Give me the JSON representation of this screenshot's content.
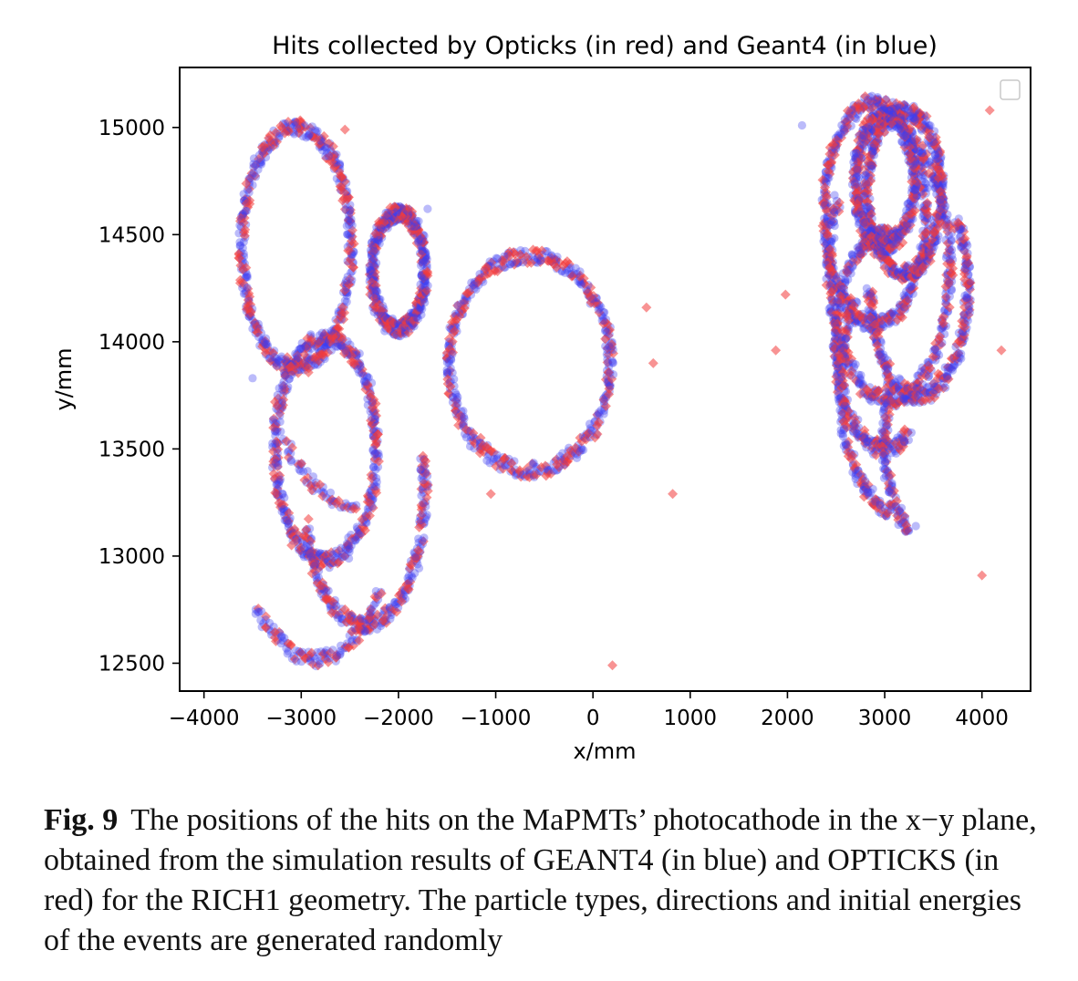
{
  "chart_data": {
    "type": "scatter",
    "title": "Hits collected by Opticks (in red) and Geant4 (in blue)",
    "xlabel": "x/mm",
    "ylabel": "y/mm",
    "xlim": [
      -4250,
      4500
    ],
    "ylim": [
      12370,
      15280
    ],
    "xticks": [
      -4000,
      -3000,
      -2000,
      -1000,
      0,
      1000,
      2000,
      3000,
      4000
    ],
    "xtick_labels": [
      "−4000",
      "−3000",
      "−2000",
      "−1000",
      "0",
      "1000",
      "2000",
      "3000",
      "4000"
    ],
    "yticks": [
      12500,
      13000,
      13500,
      14000,
      14500,
      15000
    ],
    "ytick_labels": [
      "12500",
      "13000",
      "13500",
      "14000",
      "14500",
      "15000"
    ],
    "grid": false,
    "legend": {
      "placement": "top-right",
      "entries": []
    },
    "series_style": {
      "geant4": {
        "color": "#3b3bf2",
        "marker": "circle"
      },
      "opticks": {
        "color": "#f23b3b",
        "marker": "diamond"
      }
    },
    "rings": [
      {
        "cx": -3050,
        "cy": 14440,
        "r": 560,
        "from_deg": 110,
        "to_deg": 465
      },
      {
        "cx": -2000,
        "cy": 14330,
        "r": 270,
        "from_deg": 0,
        "to_deg": 360
      },
      {
        "cx": -650,
        "cy": 13900,
        "r_x": 830,
        "r_y": 500,
        "from_deg": 0,
        "to_deg": 360
      },
      {
        "cx": -2750,
        "cy": 13500,
        "r": 520,
        "from_deg": 0,
        "to_deg": 360
      },
      {
        "cx": -2350,
        "cy": 13300,
        "r": 620,
        "from_deg": 195,
        "to_deg": 375
      },
      {
        "cx": -2850,
        "cy": 13380,
        "r": 860,
        "from_deg": 225,
        "to_deg": 320
      },
      {
        "cx": -2450,
        "cy": 14300,
        "r": 1050,
        "from_deg": 225,
        "to_deg": 270
      },
      {
        "cx": 2900,
        "cy": 14600,
        "r": 520,
        "from_deg": 0,
        "to_deg": 360
      },
      {
        "cx": 3050,
        "cy": 14350,
        "r": 620,
        "from_deg": 150,
        "to_deg": 420
      },
      {
        "cx": 3200,
        "cy": 14700,
        "r": 380,
        "from_deg": 0,
        "to_deg": 360
      },
      {
        "cx": 3000,
        "cy": 14000,
        "r": 500,
        "from_deg": 80,
        "to_deg": 300
      },
      {
        "cx": 3150,
        "cy": 13800,
        "r": 600,
        "from_deg": 140,
        "to_deg": 260
      },
      {
        "cx": 3500,
        "cy": 13550,
        "r": 500,
        "from_deg": 150,
        "to_deg": 240
      },
      {
        "cx": 3350,
        "cy": 14250,
        "r": 500,
        "from_deg": 180,
        "to_deg": 400
      },
      {
        "cx": 3000,
        "cy": 14750,
        "r": 300,
        "from_deg": 0,
        "to_deg": 360
      }
    ],
    "isolated_hits": {
      "opticks": [
        [
          -2550,
          14990
        ],
        [
          4080,
          15080
        ],
        [
          550,
          14160
        ],
        [
          620,
          13900
        ],
        [
          1980,
          14220
        ],
        [
          1880,
          13960
        ],
        [
          4200,
          13960
        ],
        [
          3550,
          13850
        ],
        [
          -1050,
          13290
        ],
        [
          820,
          13290
        ],
        [
          200,
          12490
        ],
        [
          4000,
          12910
        ],
        [
          -3100,
          13050
        ],
        [
          -2200,
          14560
        ]
      ],
      "geant4": [
        [
          2150,
          15010
        ],
        [
          -3500,
          13830
        ],
        [
          2800,
          13350
        ],
        [
          3320,
          13140
        ],
        [
          -1700,
          14620
        ],
        [
          3850,
          14450
        ]
      ]
    }
  },
  "caption": {
    "label": "Fig. 9",
    "text": "The positions of the hits on the MaPMTs’ photocathode in the x−y plane, obtained from the simulation results of GEANT4 (in blue) and OPTICKS (in red) for the RICH1 geometry. The particle types, directions and initial energies of the events are generated randomly"
  }
}
